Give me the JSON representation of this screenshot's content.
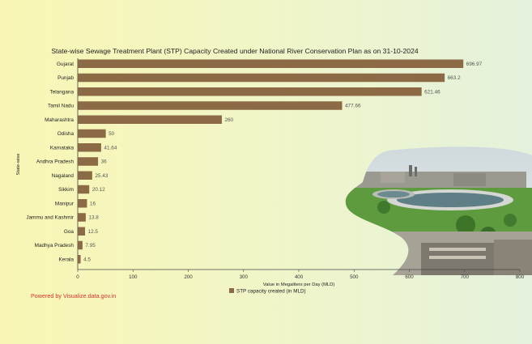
{
  "chart_data": {
    "type": "bar",
    "orientation": "horizontal",
    "title": "State-wise Sewage Treatment Plant (STP) Capacity Created under National River Conservation Plan as on 31-10-2024",
    "ylabel": "State-wise",
    "xlabel": "Value in Megaliters per Day (MLD)",
    "categories": [
      "Gujarat",
      "Punjab",
      "Telangana",
      "Tamil Nadu",
      "Maharashtra",
      "Odisha",
      "Karnataka",
      "Andhra Pradesh",
      "Nagaland",
      "Sikkim",
      "Manipur",
      "Jammu and Kashmir",
      "Goa",
      "Madhya Pradesh",
      "Kerala"
    ],
    "series": [
      {
        "name": "STP capacity created (in MLD)",
        "values": [
          696.97,
          663.2,
          621.46,
          477.66,
          260,
          50,
          41.64,
          36,
          25.43,
          20.12,
          16,
          13.8,
          12.5,
          7.95,
          4.5
        ]
      }
    ],
    "value_labels": [
      "696.97",
      "663.2",
      "621.46",
      "477.66",
      "260",
      "50",
      "41.64",
      "36",
      "25.43",
      "20.12",
      "16",
      "13.8",
      "12.5",
      "7.95",
      "4.5"
    ],
    "xlim": [
      0,
      800
    ],
    "xticks": [
      "0",
      "100",
      "200",
      "300",
      "400",
      "500",
      "600",
      "700",
      "800"
    ],
    "grid": false,
    "legend_position": "bottom-center",
    "colors": {
      "bar": "#8b6a45",
      "background_left": "#f9f6b4",
      "background_right": "#e4f1dc"
    }
  },
  "footer": {
    "powered_by": "Powered by Visualize.data.gov.in"
  },
  "decoration": {
    "photo": "sewage-treatment-plant-photo"
  }
}
